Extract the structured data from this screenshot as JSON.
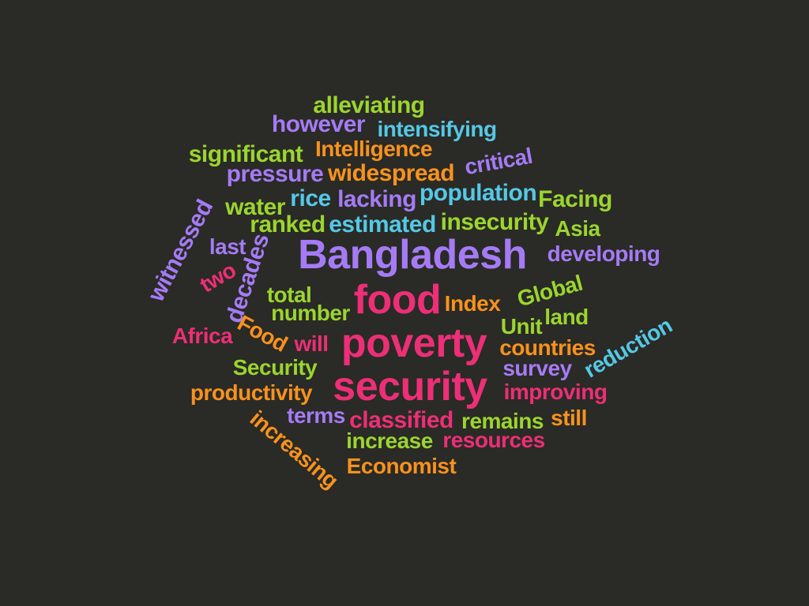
{
  "background": "#2a2a26",
  "palette": {
    "green": "#9bd52f",
    "violet": "#a57bf5",
    "cyan": "#55c8e6",
    "orange": "#f7921e",
    "pink": "#ec2f76"
  },
  "words": [
    {
      "id": "alleviating",
      "text": "alleviating",
      "color": "#9bd52f",
      "rotated": false
    },
    {
      "id": "however",
      "text": "however",
      "color": "#a57bf5",
      "rotated": false
    },
    {
      "id": "intensifying",
      "text": "intensifying",
      "color": "#55c8e6",
      "rotated": false
    },
    {
      "id": "significant",
      "text": "significant",
      "color": "#9bd52f",
      "rotated": false
    },
    {
      "id": "intelligence",
      "text": "Intelligence",
      "color": "#f7921e",
      "rotated": false
    },
    {
      "id": "critical",
      "text": "critical",
      "color": "#a57bf5",
      "rotated": true
    },
    {
      "id": "pressure",
      "text": "pressure",
      "color": "#a57bf5",
      "rotated": false
    },
    {
      "id": "widespread",
      "text": "widespread",
      "color": "#f7921e",
      "rotated": false
    },
    {
      "id": "rice",
      "text": "rice",
      "color": "#55c8e6",
      "rotated": false
    },
    {
      "id": "lacking",
      "text": "lacking",
      "color": "#a57bf5",
      "rotated": false
    },
    {
      "id": "population",
      "text": "population",
      "color": "#55c8e6",
      "rotated": false
    },
    {
      "id": "facing",
      "text": "Facing",
      "color": "#9bd52f",
      "rotated": false
    },
    {
      "id": "water",
      "text": "water",
      "color": "#9bd52f",
      "rotated": false
    },
    {
      "id": "ranked",
      "text": "ranked",
      "color": "#9bd52f",
      "rotated": false
    },
    {
      "id": "estimated",
      "text": "estimated",
      "color": "#55c8e6",
      "rotated": false
    },
    {
      "id": "insecurity",
      "text": "insecurity",
      "color": "#9bd52f",
      "rotated": false
    },
    {
      "id": "asia",
      "text": "Asia",
      "color": "#9bd52f",
      "rotated": false
    },
    {
      "id": "witnessed",
      "text": "witnessed",
      "color": "#a57bf5",
      "rotated": true
    },
    {
      "id": "last",
      "text": "last",
      "color": "#a57bf5",
      "rotated": false
    },
    {
      "id": "two",
      "text": "two",
      "color": "#ec2f76",
      "rotated": true
    },
    {
      "id": "decades",
      "text": "decades",
      "color": "#a57bf5",
      "rotated": true
    },
    {
      "id": "bangladesh",
      "text": "Bangladesh",
      "color": "#a57bf5",
      "rotated": false
    },
    {
      "id": "developing",
      "text": "developing",
      "color": "#a57bf5",
      "rotated": false
    },
    {
      "id": "total",
      "text": "total",
      "color": "#9bd52f",
      "rotated": false
    },
    {
      "id": "number",
      "text": "number",
      "color": "#9bd52f",
      "rotated": false
    },
    {
      "id": "food",
      "text": "food",
      "color": "#ec2f76",
      "rotated": false
    },
    {
      "id": "index",
      "text": "Index",
      "color": "#f7921e",
      "rotated": false
    },
    {
      "id": "global",
      "text": "Global",
      "color": "#9bd52f",
      "rotated": true
    },
    {
      "id": "unit",
      "text": "Unit",
      "color": "#9bd52f",
      "rotated": false
    },
    {
      "id": "land",
      "text": "land",
      "color": "#9bd52f",
      "rotated": false
    },
    {
      "id": "africa",
      "text": "Africa",
      "color": "#ec2f76",
      "rotated": false
    },
    {
      "id": "food-cap",
      "text": "Food",
      "color": "#f7921e",
      "rotated": true
    },
    {
      "id": "will",
      "text": "will",
      "color": "#ec2f76",
      "rotated": false
    },
    {
      "id": "poverty",
      "text": "poverty",
      "color": "#ec2f76",
      "rotated": false
    },
    {
      "id": "countries",
      "text": "countries",
      "color": "#f7921e",
      "rotated": false
    },
    {
      "id": "reduction",
      "text": "reduction",
      "color": "#55c8e6",
      "rotated": true
    },
    {
      "id": "security-cap",
      "text": "Security",
      "color": "#9bd52f",
      "rotated": false
    },
    {
      "id": "survey",
      "text": "survey",
      "color": "#a57bf5",
      "rotated": false
    },
    {
      "id": "security",
      "text": "security",
      "color": "#ec2f76",
      "rotated": false
    },
    {
      "id": "productivity",
      "text": "productivity",
      "color": "#f7921e",
      "rotated": false
    },
    {
      "id": "improving",
      "text": "improving",
      "color": "#ec2f76",
      "rotated": false
    },
    {
      "id": "terms",
      "text": "terms",
      "color": "#a57bf5",
      "rotated": false
    },
    {
      "id": "classified",
      "text": "classified",
      "color": "#ec2f76",
      "rotated": false
    },
    {
      "id": "remains",
      "text": "remains",
      "color": "#9bd52f",
      "rotated": false
    },
    {
      "id": "still",
      "text": "still",
      "color": "#f7921e",
      "rotated": false
    },
    {
      "id": "increasing",
      "text": "increasing",
      "color": "#f7921e",
      "rotated": true
    },
    {
      "id": "increase",
      "text": "increase",
      "color": "#9bd52f",
      "rotated": false
    },
    {
      "id": "resources",
      "text": "resources",
      "color": "#ec2f76",
      "rotated": false
    },
    {
      "id": "economist",
      "text": "Economist",
      "color": "#f7921e",
      "rotated": false
    }
  ]
}
